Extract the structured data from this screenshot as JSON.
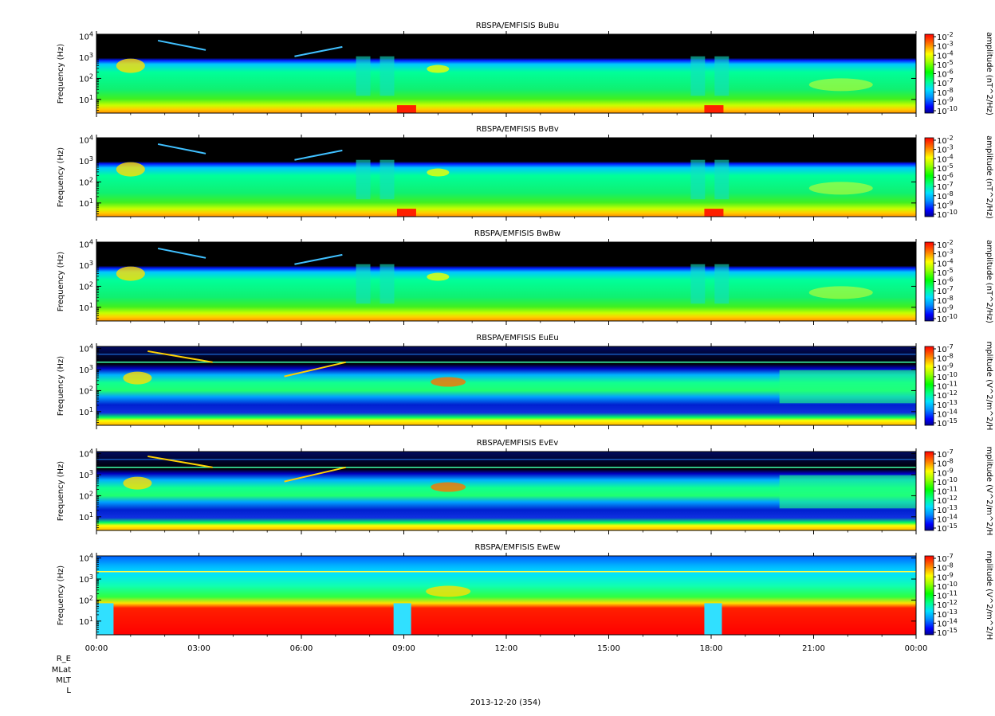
{
  "figure": {
    "date_label": "2013-12-20 (354)",
    "ephemeris_labels": [
      "R_E",
      "MLat",
      "MLT",
      "L"
    ]
  },
  "chart_data": [
    {
      "type": "heatmap",
      "title": "RBSPA/EMFISIS  BuBu",
      "ylabel": "Frequency (Hz)",
      "y_scale": "log",
      "y_ticks": [
        "10^1",
        "10^2",
        "10^3",
        "10^4"
      ],
      "x_ticks": [
        "00:00",
        "03:00",
        "06:00",
        "09:00",
        "12:00",
        "15:00",
        "18:00",
        "21:00",
        "00:00"
      ],
      "xlim_hours": [
        0,
        24
      ],
      "colorbar": {
        "label": "amplitude (nT^2/Hz)",
        "scale": "log",
        "range_exp": [
          -10,
          -2
        ],
        "ticks": [
          "10^-2",
          "10^-3",
          "10^-4",
          "10^-5",
          "10^-6",
          "10^-7",
          "10^-8",
          "10^-9",
          "10^-10"
        ]
      },
      "colormap": "rainbow",
      "features": [
        "Black background above a few hundred Hz to 10^4 Hz",
        "Green broadband emission from ~10 Hz up to ~300 Hz all day",
        "Yellow/orange band near 3-5 Hz with red patches near 09:00 and 18:00",
        "Chorus-like cyan streaks near 10^3-10^4 Hz at 02:00-03:00 and 05:30-07:00",
        "Enhanced structures near 07:30-09:30 and 17:00-18:30"
      ]
    },
    {
      "type": "heatmap",
      "title": "RBSPA/EMFISIS  BvBv",
      "ylabel": "Frequency (Hz)",
      "y_scale": "log",
      "y_ticks": [
        "10^1",
        "10^2",
        "10^3",
        "10^4"
      ],
      "x_ticks": [
        "00:00",
        "03:00",
        "06:00",
        "09:00",
        "12:00",
        "15:00",
        "18:00",
        "21:00",
        "00:00"
      ],
      "xlim_hours": [
        0,
        24
      ],
      "colorbar": {
        "label": "amplitude (nT^2/Hz)",
        "scale": "log",
        "range_exp": [
          -10,
          -2
        ],
        "ticks": [
          "10^-2",
          "10^-3",
          "10^-4",
          "10^-5",
          "10^-6",
          "10^-7",
          "10^-8",
          "10^-9",
          "10^-10"
        ]
      },
      "colormap": "rainbow",
      "features": [
        "Similar structure to BuBu",
        "Red patches near 3 Hz at ~09:00 and ~18:00"
      ]
    },
    {
      "type": "heatmap",
      "title": "RBSPA/EMFISIS  BwBw",
      "ylabel": "Frequency (Hz)",
      "y_scale": "log",
      "y_ticks": [
        "10^1",
        "10^2",
        "10^3",
        "10^4"
      ],
      "x_ticks": [
        "00:00",
        "03:00",
        "06:00",
        "09:00",
        "12:00",
        "15:00",
        "18:00",
        "21:00",
        "00:00"
      ],
      "xlim_hours": [
        0,
        24
      ],
      "colorbar": {
        "label": "amplitude (nT^2/Hz)",
        "scale": "log",
        "range_exp": [
          -10,
          -2
        ],
        "ticks": [
          "10^-2",
          "10^-3",
          "10^-4",
          "10^-5",
          "10^-6",
          "10^-7",
          "10^-8",
          "10^-9",
          "10^-10"
        ]
      },
      "colormap": "rainbow",
      "features": [
        "Similar structure to BuBu without strong red patches"
      ]
    },
    {
      "type": "heatmap",
      "title": "RBSPA/EMFISIS  EuEu",
      "ylabel": "Frequency (Hz)",
      "y_scale": "log",
      "y_ticks": [
        "10^1",
        "10^2",
        "10^3",
        "10^4"
      ],
      "x_ticks": [
        "00:00",
        "03:00",
        "06:00",
        "09:00",
        "12:00",
        "15:00",
        "18:00",
        "21:00",
        "00:00"
      ],
      "xlim_hours": [
        0,
        24
      ],
      "colorbar": {
        "label": "mplitude (V^2/m^2/H",
        "scale": "log",
        "range_exp": [
          -15,
          -7
        ],
        "ticks": [
          "10^-7",
          "10^-8",
          "10^-9",
          "10^-10",
          "10^-11",
          "10^-12",
          "10^-13",
          "10^-14",
          "10^-15"
        ]
      },
      "colormap": "rainbow",
      "features": [
        "Dark blue background with green/cyan emission between ~30 Hz and ~1 kHz",
        "Horizontal lines near 2 kHz",
        "Yellow/orange band below ~5 Hz"
      ]
    },
    {
      "type": "heatmap",
      "title": "RBSPA/EMFISIS  EvEv",
      "ylabel": "Frequency (Hz)",
      "y_scale": "log",
      "y_ticks": [
        "10^1",
        "10^2",
        "10^3",
        "10^4"
      ],
      "x_ticks": [
        "00:00",
        "03:00",
        "06:00",
        "09:00",
        "12:00",
        "15:00",
        "18:00",
        "21:00",
        "00:00"
      ],
      "xlim_hours": [
        0,
        24
      ],
      "colorbar": {
        "label": "mplitude (V^2/m^2/H",
        "scale": "log",
        "range_exp": [
          -15,
          -7
        ],
        "ticks": [
          "10^-7",
          "10^-8",
          "10^-9",
          "10^-10",
          "10^-11",
          "10^-12",
          "10^-13",
          "10^-14",
          "10^-15"
        ]
      },
      "colormap": "rainbow",
      "features": [
        "Similar structure to EuEu"
      ]
    },
    {
      "type": "heatmap",
      "title": "RBSPA/EMFISIS  EwEw",
      "ylabel": "Frequency (Hz)",
      "y_scale": "log",
      "y_ticks": [
        "10^1",
        "10^2",
        "10^3",
        "10^4"
      ],
      "x_ticks": [
        "00:00",
        "03:00",
        "06:00",
        "09:00",
        "12:00",
        "15:00",
        "18:00",
        "21:00",
        "00:00"
      ],
      "xlim_hours": [
        0,
        24
      ],
      "colorbar": {
        "label": "mplitude (V^2/m^2/H",
        "scale": "log",
        "range_exp": [
          -15,
          -7
        ],
        "ticks": [
          "10^-7",
          "10^-8",
          "10^-9",
          "10^-10",
          "10^-11",
          "10^-12",
          "10^-13",
          "10^-14",
          "10^-15"
        ]
      },
      "colormap": "rainbow",
      "features": [
        "Red saturated region below ~50-80 Hz for most of the day",
        "Gaps in red region near 09:00 and 18:00",
        "Cyan background above ~200 Hz with horizontal lines near 2 kHz"
      ]
    }
  ]
}
